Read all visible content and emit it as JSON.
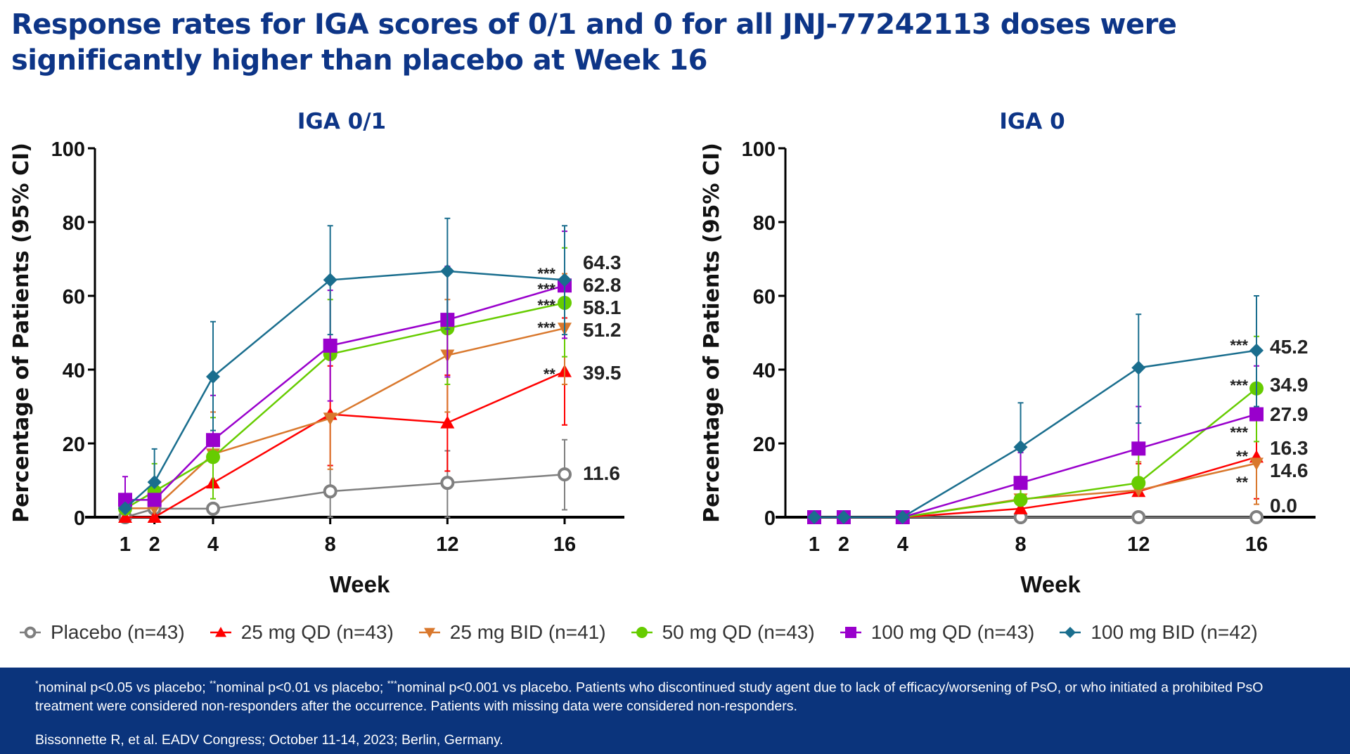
{
  "title": "Response rates for IGA scores of 0/1 and 0 for all JNJ-77242113 doses were significantly higher than placebo at Week 16",
  "series_styles": [
    {
      "name": "Placebo (n=43)",
      "color": "#7f7f7f",
      "marker": "open-circle"
    },
    {
      "name": "25 mg QD (n=43)",
      "color": "#ff0000",
      "marker": "triangle-up"
    },
    {
      "name": "25 mg BID (n=41)",
      "color": "#d9782d",
      "marker": "triangle-down"
    },
    {
      "name": "50 mg QD (n=43)",
      "color": "#66cc00",
      "marker": "circle"
    },
    {
      "name": "100 mg QD (n=43)",
      "color": "#9900cc",
      "marker": "square"
    },
    {
      "name": "100 mg BID (n=42)",
      "color": "#1a6e8e",
      "marker": "diamond"
    }
  ],
  "chart_data": [
    {
      "type": "line",
      "title": "IGA 0/1",
      "xlabel": "Week",
      "ylabel": "Percentage of Patients (95% CI)",
      "x": [
        1,
        2,
        4,
        8,
        12,
        16
      ],
      "xticks": [
        "1",
        "2",
        "4",
        "8",
        "12",
        "16"
      ],
      "ylim": [
        0,
        100
      ],
      "yticks": [
        "0",
        "20",
        "40",
        "60",
        "80",
        "100"
      ],
      "grid": false,
      "series": [
        {
          "name": "Placebo (n=43)",
          "values": [
            0,
            2.3,
            2.3,
            7.0,
            9.3,
            11.6
          ],
          "ci_upper": [
            null,
            null,
            null,
            14,
            18,
            21
          ],
          "ci_lower": [
            null,
            null,
            null,
            0,
            0,
            2
          ]
        },
        {
          "name": "25 mg QD (n=43)",
          "values": [
            0,
            0,
            9.3,
            27.9,
            25.6,
            39.5
          ],
          "ci_upper": [
            null,
            null,
            null,
            41,
            38.5,
            54
          ],
          "ci_lower": [
            null,
            null,
            null,
            14,
            12.5,
            25
          ]
        },
        {
          "name": "25 mg BID (n=41)",
          "values": [
            2.4,
            2.4,
            17.1,
            26.8,
            43.9,
            51.2
          ],
          "ci_upper": [
            null,
            null,
            28.5,
            null,
            59,
            66
          ],
          "ci_lower": [
            null,
            null,
            null,
            13,
            28.5,
            36
          ]
        },
        {
          "name": "50 mg QD (n=43)",
          "values": [
            2.3,
            7.0,
            16.3,
            44.2,
            51.2,
            58.1
          ],
          "ci_upper": [
            null,
            14.5,
            27,
            59,
            66,
            73
          ],
          "ci_lower": [
            null,
            null,
            5,
            null,
            36,
            43.5
          ]
        },
        {
          "name": "100 mg QD (n=43)",
          "values": [
            4.7,
            4.7,
            20.9,
            46.5,
            53.5,
            62.8
          ],
          "ci_upper": [
            11,
            null,
            33,
            61.5,
            68,
            77.5
          ],
          "ci_lower": [
            null,
            null,
            null,
            31.5,
            38,
            48.5
          ]
        },
        {
          "name": "100 mg BID (n=42)",
          "values": [
            2.4,
            9.5,
            38.1,
            64.3,
            66.7,
            64.3
          ],
          "ci_upper": [
            null,
            18.5,
            53,
            79,
            81,
            79
          ],
          "ci_lower": [
            null,
            null,
            23.5,
            49.5,
            51,
            49.5
          ]
        }
      ],
      "end_labels": [
        {
          "text": "64.3",
          "stars": "***"
        },
        {
          "text": "62.8",
          "stars": "***"
        },
        {
          "text": "58.1",
          "stars": "***"
        },
        {
          "text": "51.2",
          "stars": "***"
        },
        {
          "text": "39.5",
          "stars": "**"
        },
        {
          "text": "11.6",
          "stars": ""
        }
      ]
    },
    {
      "type": "line",
      "title": "IGA 0",
      "xlabel": "Week",
      "ylabel": "Percentage of Patients (95% CI)",
      "x": [
        1,
        2,
        4,
        8,
        12,
        16
      ],
      "xticks": [
        "1",
        "2",
        "4",
        "8",
        "12",
        "16"
      ],
      "ylim": [
        0,
        100
      ],
      "yticks": [
        "0",
        "20",
        "40",
        "60",
        "80",
        "100"
      ],
      "grid": false,
      "series": [
        {
          "name": "Placebo (n=43)",
          "values": [
            0,
            0,
            0,
            0,
            0,
            0
          ],
          "ci_upper": [
            null,
            null,
            null,
            null,
            null,
            null
          ],
          "ci_lower": [
            null,
            null,
            null,
            null,
            null,
            null
          ]
        },
        {
          "name": "25 mg QD (n=43)",
          "values": [
            0,
            0,
            0,
            2.3,
            7.0,
            16.3
          ],
          "ci_upper": [
            null,
            null,
            null,
            null,
            14.5,
            27
          ],
          "ci_lower": [
            null,
            null,
            null,
            null,
            null,
            5
          ]
        },
        {
          "name": "25 mg BID (n=41)",
          "values": [
            0,
            0,
            0,
            4.9,
            7.3,
            14.6
          ],
          "ci_upper": [
            null,
            null,
            null,
            11,
            15,
            null
          ],
          "ci_lower": [
            null,
            null,
            null,
            null,
            null,
            3.5
          ]
        },
        {
          "name": "50 mg QD (n=43)",
          "values": [
            0,
            0,
            0,
            4.7,
            9.3,
            34.9
          ],
          "ci_upper": [
            null,
            null,
            null,
            10.5,
            17.5,
            49
          ],
          "ci_lower": [
            null,
            null,
            null,
            null,
            null,
            20.5
          ]
        },
        {
          "name": "100 mg QD (n=43)",
          "values": [
            0,
            0,
            0,
            9.3,
            18.6,
            27.9
          ],
          "ci_upper": [
            null,
            null,
            null,
            17.5,
            30,
            41
          ],
          "ci_lower": [
            null,
            null,
            null,
            null,
            null,
            null
          ]
        },
        {
          "name": "100 mg BID (n=42)",
          "values": [
            0,
            0,
            0,
            19.0,
            40.5,
            45.2
          ],
          "ci_upper": [
            null,
            null,
            null,
            31,
            55,
            60
          ],
          "ci_lower": [
            null,
            null,
            null,
            null,
            25.5,
            30
          ]
        }
      ],
      "end_labels": [
        {
          "text": "45.2",
          "stars": "***"
        },
        {
          "text": "34.9",
          "stars": "***"
        },
        {
          "text": "27.9",
          "stars": "***"
        },
        {
          "text": "16.3",
          "stars": "**"
        },
        {
          "text": "14.6",
          "stars": "**"
        },
        {
          "text": "0.0",
          "stars": ""
        }
      ]
    }
  ],
  "footer": {
    "footnote_parts": [
      {
        "sup": "*",
        "text": "nominal p<0.05 vs placebo; "
      },
      {
        "sup": "**",
        "text": "nominal p<0.01 vs placebo; "
      },
      {
        "sup": "***",
        "text": "nominal p<0.001 vs placebo. Patients who discontinued study agent due to lack of efficacy/worsening of PsO, or who initiated a prohibited PsO treatment were considered non-responders after the occurrence. Patients with missing data were considered non-responders."
      }
    ],
    "citation": "Bissonnette R, et al. EADV Congress; October 11-14, 2023; Berlin, Germany."
  }
}
